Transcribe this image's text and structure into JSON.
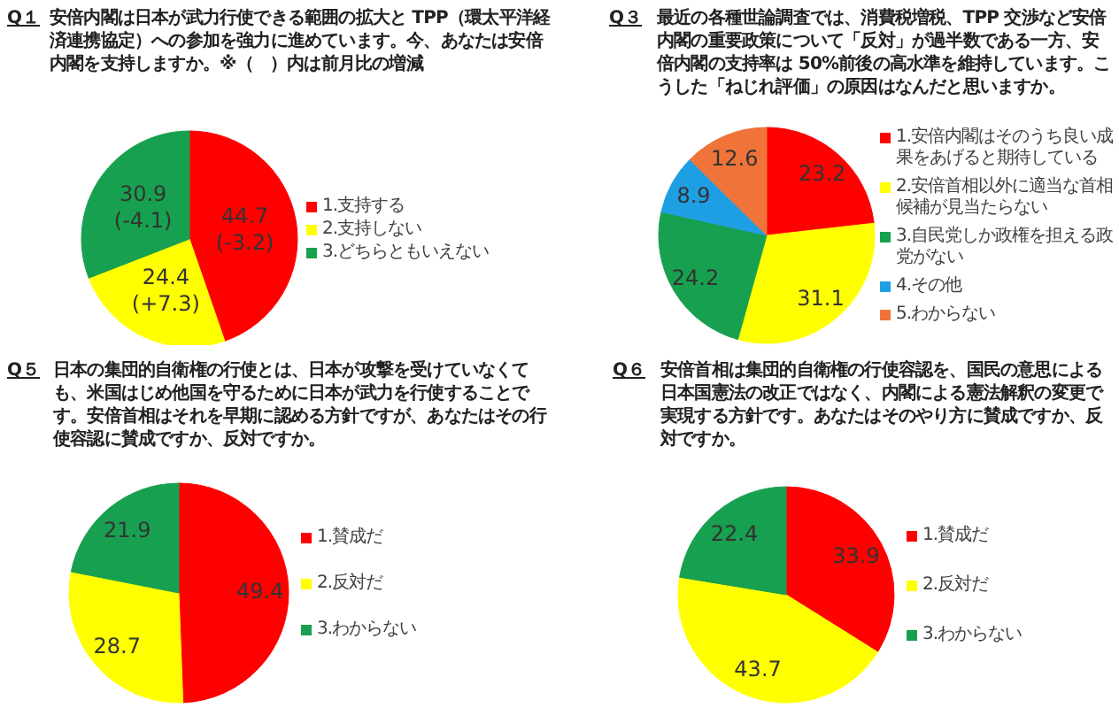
{
  "chart_data": [
    {
      "type": "pie",
      "title": "Q１ 安倍内閣は日本が武力行使できる範囲の拡大と TPP（環太平洋経済連携協定）への参加を強力に進めています。今、あなたは安倍内閣を支持しますか。※（　）内は前月比の増減",
      "categories": [
        "1.支持する",
        "2.支持しない",
        "3.どちらともいえない"
      ],
      "values": [
        44.7,
        24.4,
        30.9
      ],
      "colors": [
        "#ff0000",
        "#ffff00",
        "#17a04f"
      ],
      "value_labels": [
        "44.7 (-3.2)",
        "24.4 (+7.3)",
        "30.9 (-4.1)"
      ],
      "legend": "right"
    },
    {
      "type": "pie",
      "title": "Q３ 最近の各種世論調査では、消費税増税、TPP 交渉など安倍内閣の重要政策について「反対」が過半数である一方、安倍内閣の支持率は 50%前後の高水準を維持しています。こうした「ねじれ評価」の原因はなんだと思いますか。",
      "categories": [
        "1.安倍内閣はそのうち良い成果をあげると期待している",
        "2.安倍首相以外に適当な首相候補が見当たらない",
        "3.自民党しか政権を担える政党がない",
        "4.その他",
        "5.わからない"
      ],
      "values": [
        23.2,
        31.1,
        24.2,
        8.9,
        12.6
      ],
      "colors": [
        "#ff0000",
        "#ffff00",
        "#17a04f",
        "#1f9fe3",
        "#f0743a"
      ],
      "data_labels": true,
      "legend": "right"
    },
    {
      "type": "pie",
      "title": "Q５ 日本の集団的自衛権の行使とは、日本が攻撃を受けていなくても、米国はじめ他国を守るために日本が武力を行使することです。安倍首相はそれを早期に認める方針ですが、あなたはその行使容認に賛成ですか、反対ですか。",
      "categories": [
        "1.賛成だ",
        "2.反対だ",
        "3.わからない"
      ],
      "values": [
        49.4,
        28.7,
        21.9
      ],
      "colors": [
        "#ff0000",
        "#ffff00",
        "#17a04f"
      ],
      "data_labels": true,
      "legend": "right"
    },
    {
      "type": "pie",
      "title": "Q６ 安倍首相は集団的自衛権の行使容認を、国民の意思による日本国憲法の改正ではなく、内閣による憲法解釈の変更で実現する方針です。あなたはそのやり方に賛成ですか、反対ですか。",
      "categories": [
        "1.賛成だ",
        "2.反対だ",
        "3.わからない"
      ],
      "values": [
        33.9,
        43.7,
        22.4
      ],
      "colors": [
        "#ff0000",
        "#ffff00",
        "#17a04f"
      ],
      "data_labels": true,
      "legend": "right"
    }
  ]
}
